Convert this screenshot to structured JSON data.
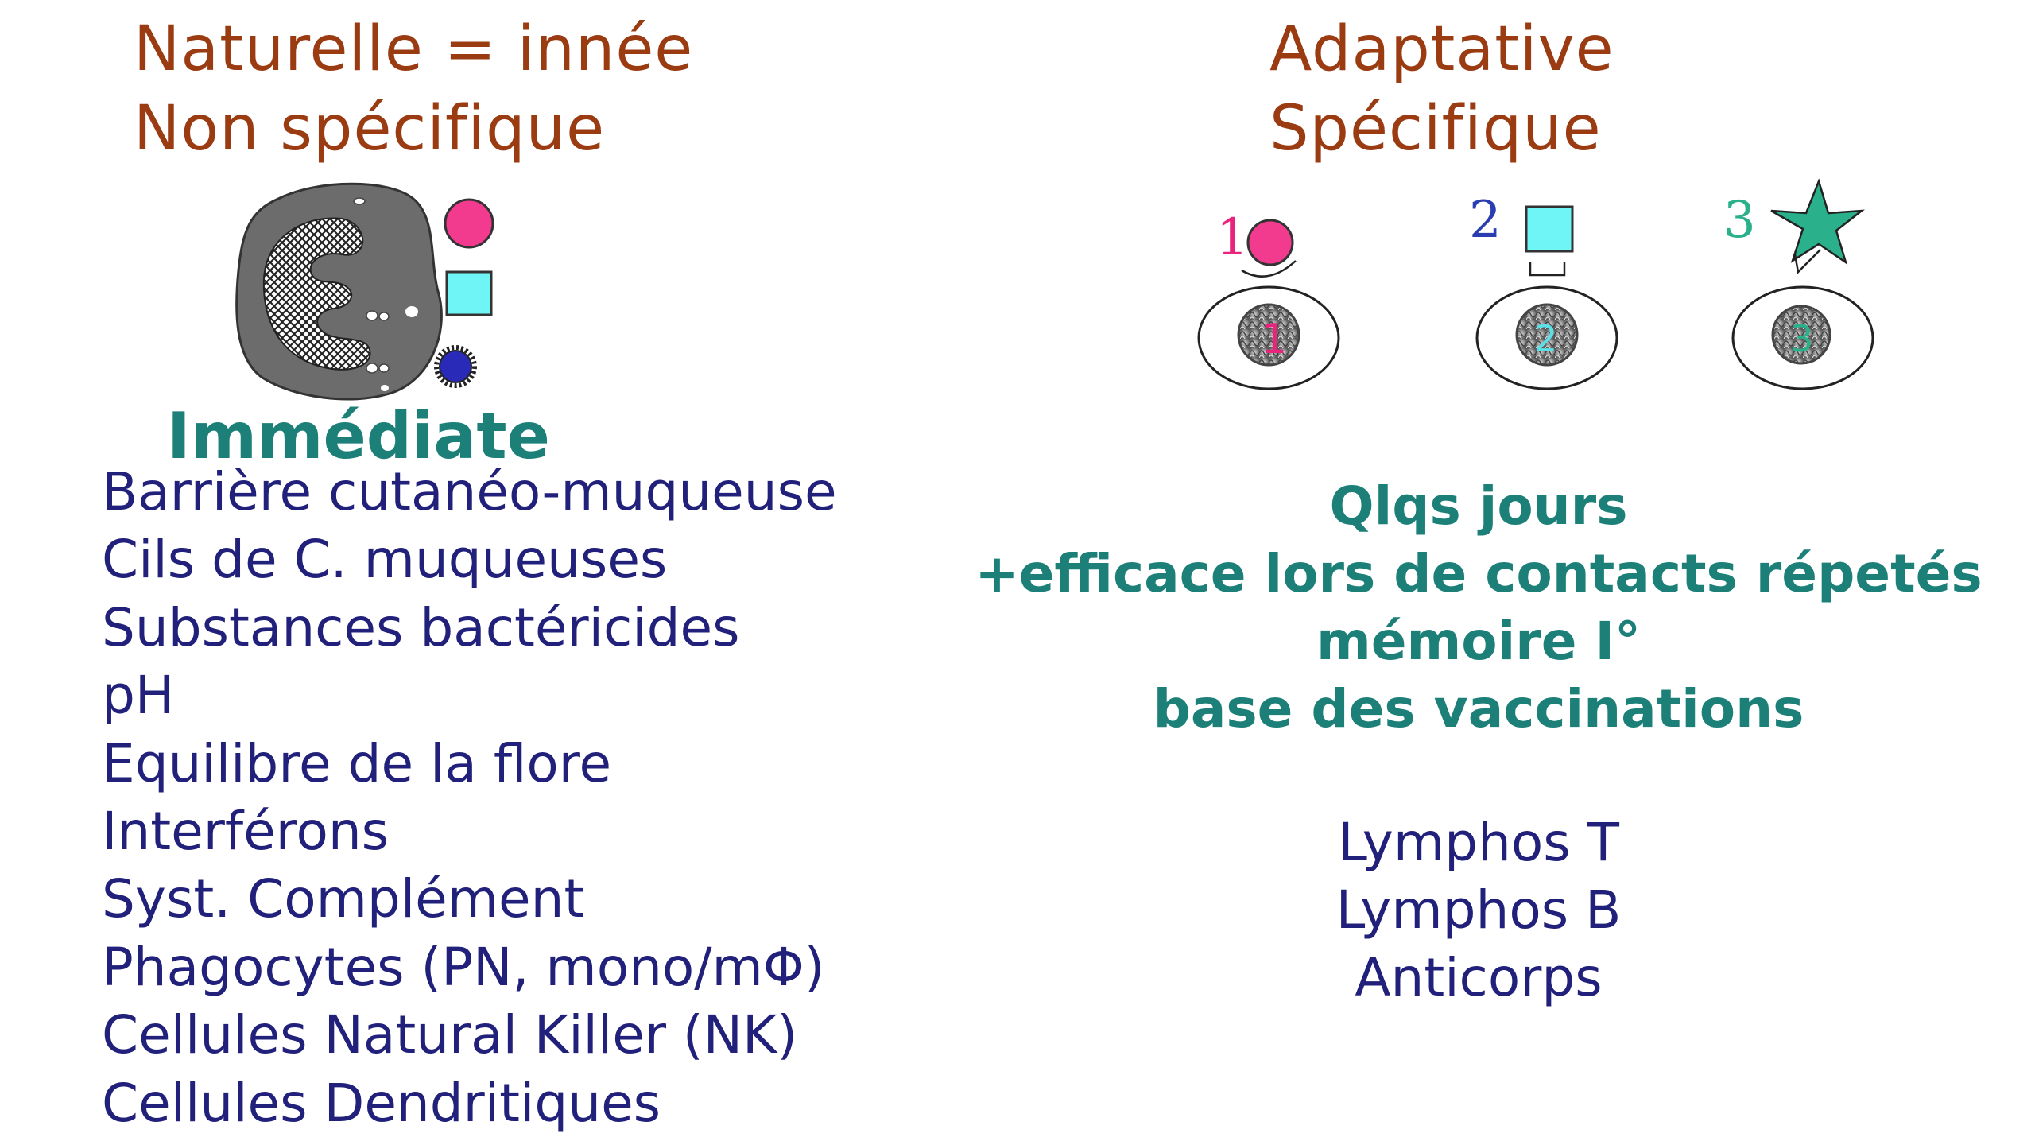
{
  "innate": {
    "title_line1": "Naturelle = innée",
    "title_line2": "Non spécifique",
    "timing": "Immédiate",
    "items": [
      "Barrière cutanéo-muqueuse",
      "Cils de C. muqueuses",
      "Substances bactéricides",
      "pH",
      "Equilibre de la flore",
      "Interférons",
      "Syst. Complément",
      "Phagocytes (PN, mono/mΦ)",
      "Cellules Natural Killer (NK)",
      "Cellules Dendritiques"
    ]
  },
  "adaptive": {
    "title_line1": "Adaptative",
    "title_line2": "Spécifique",
    "lymphocytes": [
      {
        "label": "1",
        "antigen": "circle",
        "color": "#e8247d"
      },
      {
        "label": "2",
        "antigen": "square",
        "color": "#2a3eb1"
      },
      {
        "label": "3",
        "antigen": "star",
        "color": "#2ab08a"
      }
    ],
    "notes": [
      "Qlqs jours",
      "+efficace lors de contacts répetés",
      "mémoire I°",
      "base des vaccinations"
    ],
    "cells": [
      "Lymphos T",
      "Lymphos B",
      "Anticorps"
    ]
  },
  "colors": {
    "title": "#9a3b12",
    "teal": "#1c8079",
    "navy": "#21207a",
    "pink": "#e8247d",
    "cyan": "#5cf2f2",
    "blue": "#2a2ab8",
    "green": "#2ab08a"
  }
}
